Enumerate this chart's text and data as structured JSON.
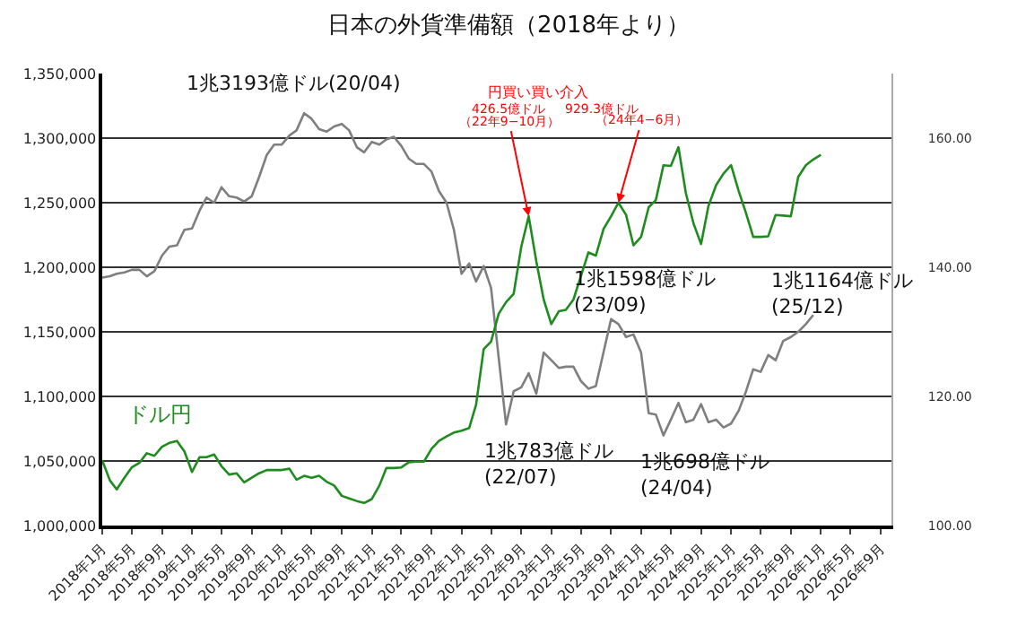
{
  "chart_data": {
    "type": "line",
    "title": "日本の外貨準備額（2018年より）",
    "x": [
      "2018-01",
      "2018-02",
      "2018-03",
      "2018-04",
      "2018-05",
      "2018-06",
      "2018-07",
      "2018-08",
      "2018-09",
      "2018-10",
      "2018-11",
      "2018-12",
      "2019-01",
      "2019-02",
      "2019-03",
      "2019-04",
      "2019-05",
      "2019-06",
      "2019-07",
      "2019-08",
      "2019-09",
      "2019-10",
      "2019-11",
      "2019-12",
      "2020-01",
      "2020-02",
      "2020-03",
      "2020-04",
      "2020-05",
      "2020-06",
      "2020-07",
      "2020-08",
      "2020-09",
      "2020-10",
      "2020-11",
      "2020-12",
      "2021-01",
      "2021-02",
      "2021-03",
      "2021-04",
      "2021-05",
      "2021-06",
      "2021-07",
      "2021-08",
      "2021-09",
      "2021-10",
      "2021-11",
      "2021-12",
      "2022-01",
      "2022-02",
      "2022-03",
      "2022-04",
      "2022-05",
      "2022-06",
      "2022-07",
      "2022-08",
      "2022-09",
      "2022-10",
      "2022-11",
      "2022-12",
      "2023-01",
      "2023-02",
      "2023-03",
      "2023-04",
      "2023-05",
      "2023-06",
      "2023-07",
      "2023-08",
      "2023-09",
      "2023-10",
      "2023-11",
      "2023-12",
      "2024-01",
      "2024-02",
      "2024-03",
      "2024-04",
      "2024-05",
      "2024-06",
      "2024-07",
      "2024-08",
      "2024-09",
      "2024-10",
      "2024-11",
      "2024-12",
      "2025-01",
      "2025-02",
      "2025-03",
      "2025-04",
      "2025-05",
      "2025-06",
      "2025-07",
      "2025-08",
      "2025-09",
      "2025-10",
      "2025-11",
      "2025-12",
      "2026-01"
    ],
    "series": [
      {
        "color": "#7f7f7f",
        "values": [
          1192000,
          1193000,
          1195000,
          1196000,
          1198000,
          1198000,
          1193000,
          1197000,
          1209000,
          1216000,
          1217000,
          1229000,
          1230000,
          1244000,
          1254000,
          1250000,
          1262000,
          1255000,
          1254000,
          1251000,
          1255000,
          1270000,
          1287000,
          1295000,
          1295000,
          1302000,
          1306000,
          1319300,
          1315000,
          1307000,
          1305000,
          1309000,
          1311000,
          1306000,
          1293000,
          1289000,
          1297000,
          1295000,
          1299000,
          1301000,
          1294000,
          1284000,
          1280000,
          1280000,
          1274000,
          1259000,
          1250000,
          1229000,
          1195000,
          1203000,
          1189000,
          1201000,
          1184000,
          1130000,
          1078300,
          1104000,
          1107000,
          1118000,
          1102000,
          1134000,
          1128000,
          1122000,
          1123000,
          1123000,
          1112000,
          1106000,
          1108000,
          1134000,
          1159800,
          1156000,
          1146000,
          1148000,
          1134000,
          1087000,
          1086000,
          1069800,
          1082000,
          1095000,
          1080000,
          1082000,
          1094000,
          1080000,
          1082000,
          1076000,
          1079000,
          1089000,
          1103000,
          1121000,
          1119000,
          1132000,
          1128000,
          1143000,
          1146000,
          1150000,
          1156000,
          1163000,
          null
        ]
      },
      {
        "name": "ドル円",
        "color": "#1e8c1e",
        "axis": "y2",
        "values": [
          110.1,
          107.0,
          105.6,
          107.4,
          109.0,
          109.7,
          111.2,
          110.8,
          112.2,
          112.8,
          113.1,
          111.5,
          108.3,
          110.6,
          110.6,
          111.0,
          109.2,
          107.9,
          108.1,
          106.7,
          107.4,
          108.1,
          108.6,
          108.6,
          108.6,
          108.8,
          107.1,
          107.7,
          107.4,
          107.7,
          106.8,
          106.2,
          104.6,
          104.2,
          103.8,
          103.5,
          104.1,
          106.2,
          108.9,
          108.9,
          109.0,
          109.8,
          109.9,
          109.9,
          111.9,
          113.1,
          113.8,
          114.4,
          114.7,
          115.1,
          118.7,
          127.3,
          128.5,
          132.8,
          134.6,
          135.9,
          143.2,
          147.9,
          140.9,
          135.0,
          131.2,
          133.2,
          133.4,
          135.0,
          138.6,
          142.3,
          141.8,
          145.9,
          147.9,
          150.0,
          148.1,
          143.4,
          144.7,
          149.3,
          150.4,
          155.8,
          155.7,
          158.6,
          151.5,
          146.8,
          143.6,
          149.5,
          152.7,
          154.5,
          155.8,
          151.8,
          148.6,
          144.7,
          144.7,
          144.8,
          148.1,
          148.0,
          147.9,
          154.0,
          155.8,
          156.7,
          157.4
        ]
      }
    ],
    "xlim": [
      "2018-01",
      "2026-10-15"
    ],
    "xticks": [
      {
        "value": "2018-01",
        "label": "2018年1月"
      },
      {
        "value": "2018-05",
        "label": "2018年5月"
      },
      {
        "value": "2018-09",
        "label": "2018年9月"
      },
      {
        "value": "2019-01",
        "label": "2019年1月"
      },
      {
        "value": "2019-05",
        "label": "2019年5月"
      },
      {
        "value": "2019-09",
        "label": "2019年9月"
      },
      {
        "value": "2020-01",
        "label": "2020年1月"
      },
      {
        "value": "2020-05",
        "label": "2020年5月"
      },
      {
        "value": "2020-09",
        "label": "2020年9月"
      },
      {
        "value": "2021-01",
        "label": "2021年1月"
      },
      {
        "value": "2021-05",
        "label": "2021年5月"
      },
      {
        "value": "2021-09",
        "label": "2021年9月"
      },
      {
        "value": "2022-01",
        "label": "2022年1月"
      },
      {
        "value": "2022-05",
        "label": "2022年5月"
      },
      {
        "value": "2022-09",
        "label": "2022年9月"
      },
      {
        "value": "2023-01",
        "label": "2023年1月"
      },
      {
        "value": "2023-05",
        "label": "2023年5月"
      },
      {
        "value": "2023-09",
        "label": "2023年9月"
      },
      {
        "value": "2024-01",
        "label": "2024年1月"
      },
      {
        "value": "2024-05",
        "label": "2024年5月"
      },
      {
        "value": "2024-09",
        "label": "2024年9月"
      },
      {
        "value": "2025-01",
        "label": "2025年1月"
      },
      {
        "value": "2025-05",
        "label": "2025年5月"
      },
      {
        "value": "2025-09",
        "label": "2025年9月"
      },
      {
        "value": "2026-01",
        "label": "2026年1月"
      },
      {
        "value": "2026-05",
        "label": "2026年5月"
      },
      {
        "value": "2026-09",
        "label": "2026年9月"
      }
    ],
    "ylim": [
      1000000,
      1350000
    ],
    "yticks": [
      {
        "value": 1000000,
        "label": "1,000,000"
      },
      {
        "value": 1050000,
        "label": "1,050,000"
      },
      {
        "value": 1100000,
        "label": "1,100,000"
      },
      {
        "value": 1150000,
        "label": "1,150,000"
      },
      {
        "value": 1200000,
        "label": "1,200,000"
      },
      {
        "value": 1250000,
        "label": "1,250,000"
      },
      {
        "value": 1300000,
        "label": "1,300,000"
      },
      {
        "value": 1350000,
        "label": "1,350,000"
      }
    ],
    "y2lim": [
      100,
      170
    ],
    "y2ticks": [
      {
        "value": 100,
        "label": "100.00"
      },
      {
        "value": 120,
        "label": "120.00"
      },
      {
        "value": 140,
        "label": "140.00"
      },
      {
        "value": 160,
        "label": "160.00"
      }
    ],
    "grid": "y",
    "legend": false,
    "marker": "none",
    "line_style": "solid",
    "annotations": [
      "円買い買い介入",
      "426.5億ドル",
      "929.3億ドル",
      {
        "text": "（22年9−10月）",
        "x": "2022-10",
        "y": 1239500
      },
      {
        "text": "（24年4−6月）",
        "x": "2023-10",
        "y": 1250000
      },
      {
        "text": "1兆3193億ドル(20/04)",
        "x": "2020-04",
        "y": 1319300
      },
      {
        "text": "1兆783億ドル\n(22/07)",
        "x": "2022-07",
        "y": 1078300
      },
      {
        "text": "1兆1598億ドル\n(23/09)",
        "x": "2023-09",
        "y": 1159800
      },
      {
        "text": "1兆698億ドル\n(24/04)",
        "x": "2024-04",
        "y": 1069800
      },
      {
        "text": "1兆1164億ドル\n(25/12)",
        "x": "2025-12",
        "y": 1163000
      }
    ]
  }
}
